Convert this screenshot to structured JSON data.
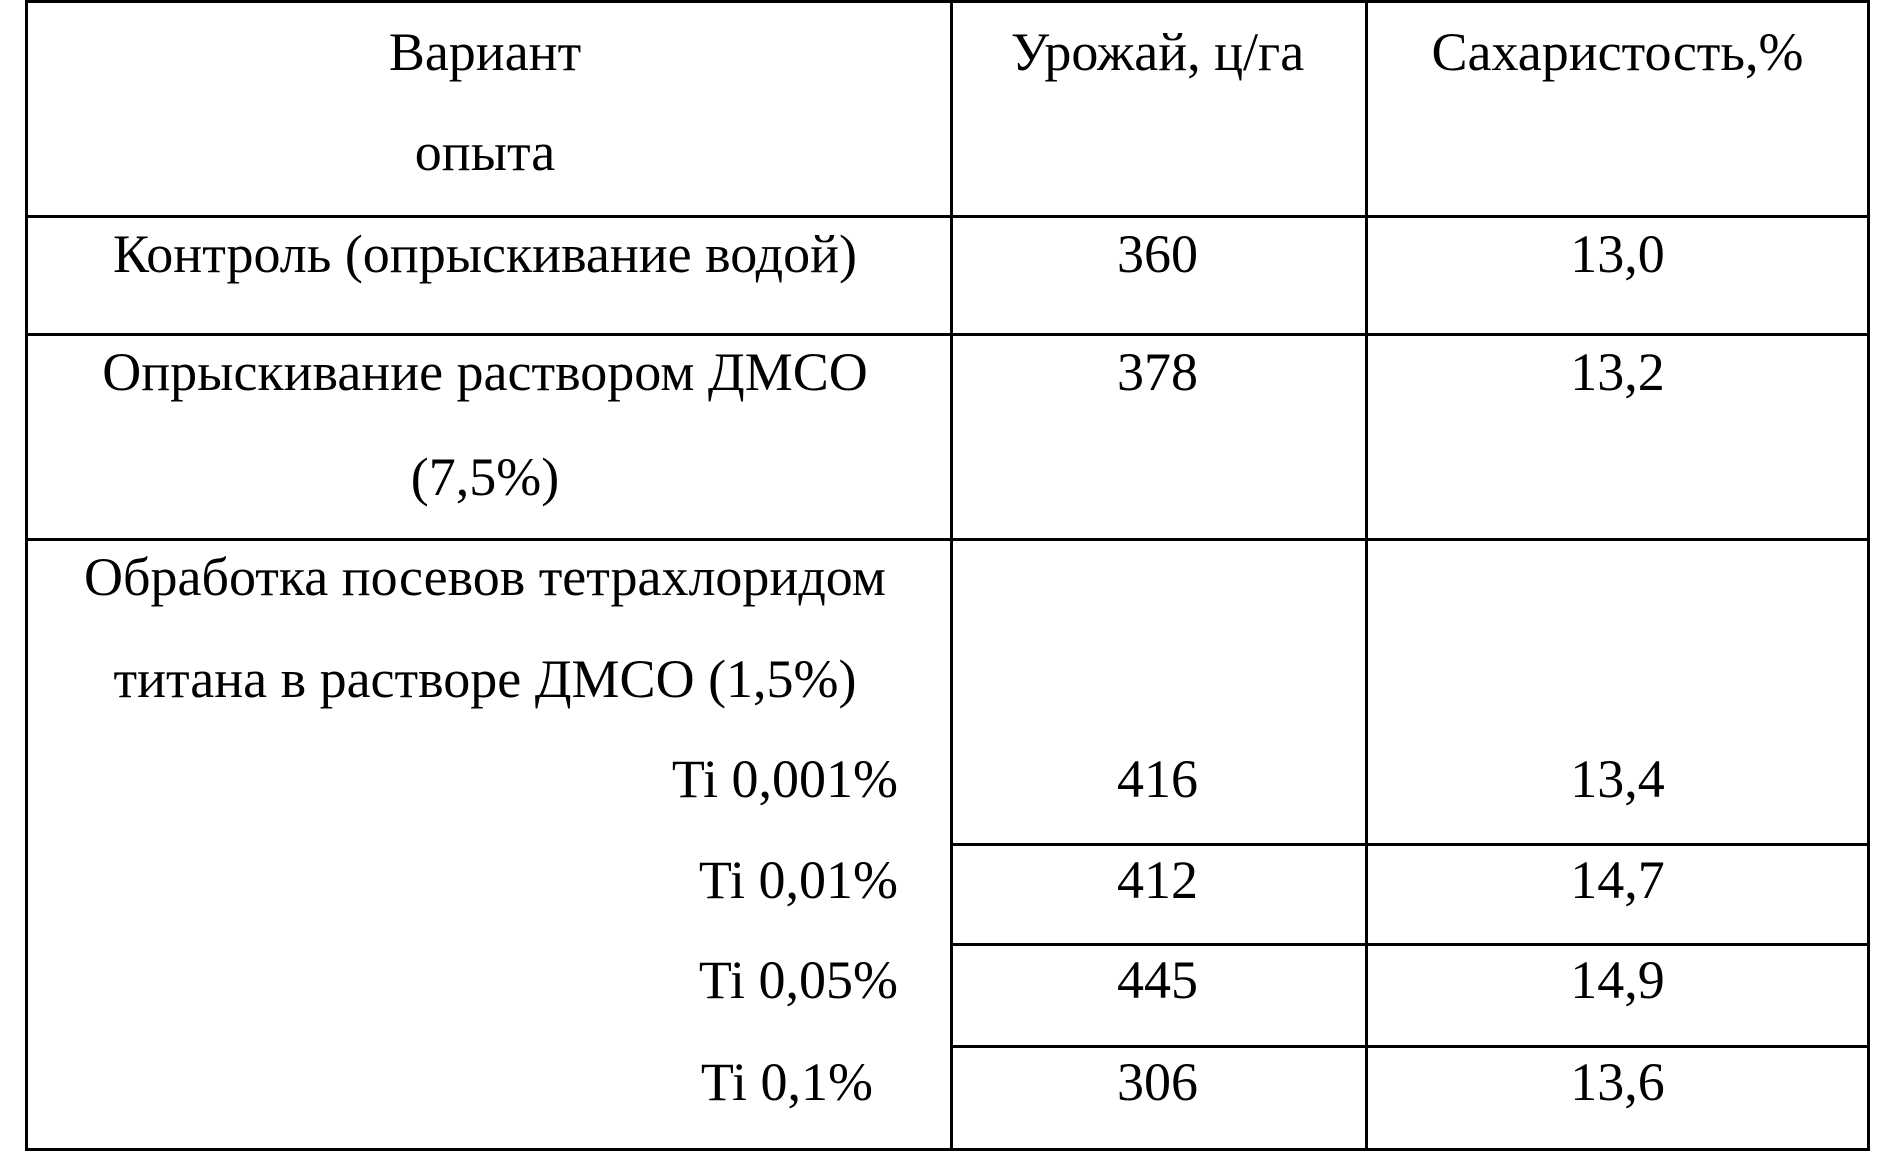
{
  "table": {
    "headers": {
      "variant_line1": "Вариант",
      "variant_line2": "опыта",
      "yield": "Урожай, ц/га",
      "sugar": "Сахаристость,%"
    },
    "rows": [
      {
        "variant": "Контроль (опрыскивание водой)",
        "yield": "360",
        "sugar": "13,0"
      },
      {
        "variant_line1": "Опрыскивание раствором ДМСО",
        "variant_line2": "(7,5%)",
        "yield": "378",
        "sugar": "13,2"
      }
    ],
    "group": {
      "title_line1": "Обработка посевов тетрахлоридом",
      "title_line2": "титана в растворе ДМСО (1,5%)",
      "subrows": [
        {
          "label": "Ti 0,001%",
          "yield": "416",
          "sugar": "13,4"
        },
        {
          "label": "Ti 0,01%",
          "yield": "412",
          "sugar": "14,7"
        },
        {
          "label": "Ti 0,05%",
          "yield": "445",
          "sugar": "14,9"
        },
        {
          "label": "Ti 0,1%",
          "yield": "306",
          "sugar": "13,6"
        }
      ]
    }
  }
}
